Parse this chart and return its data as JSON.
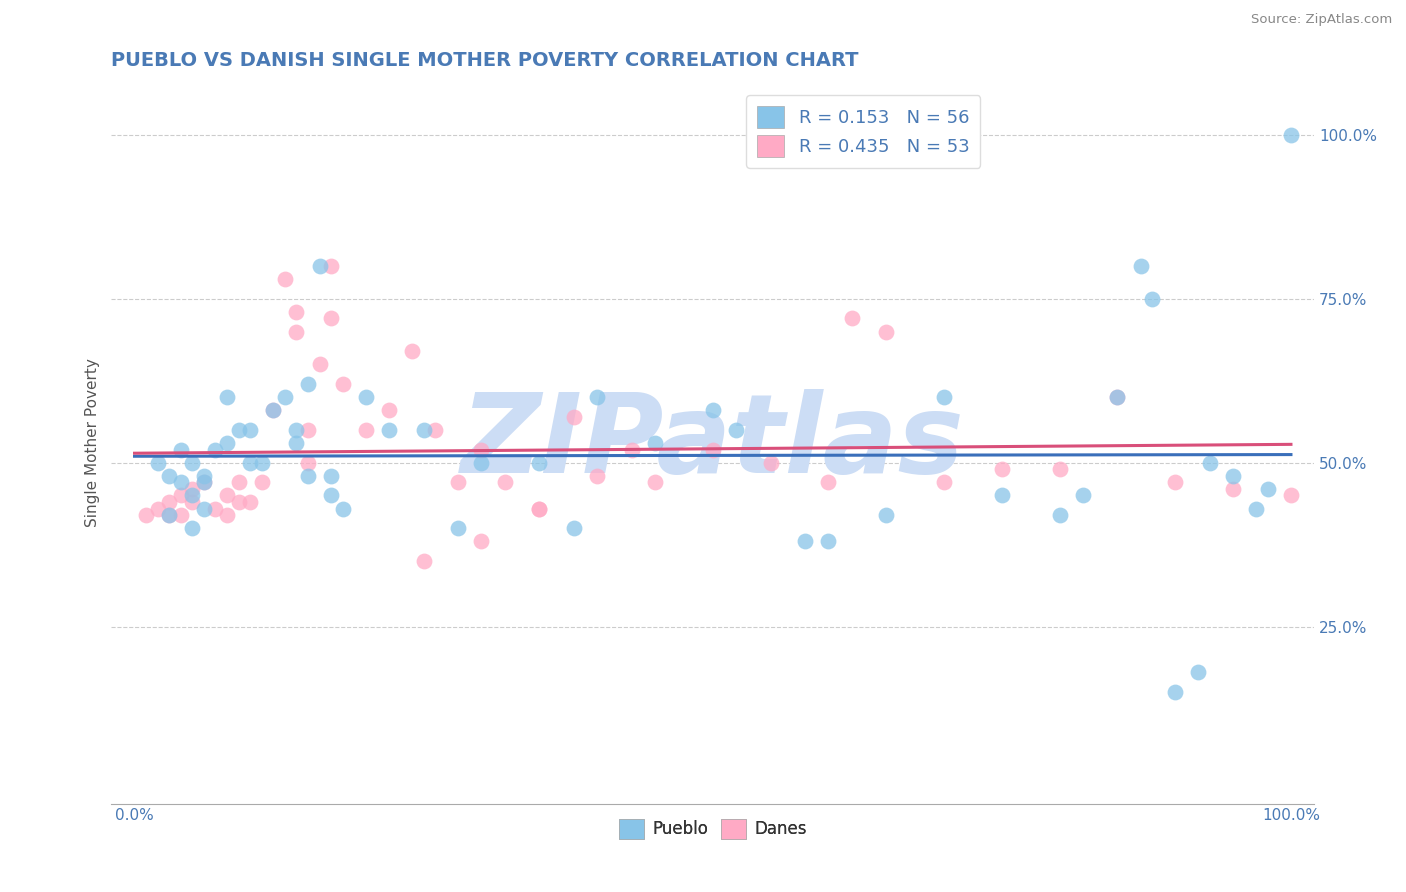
{
  "title": "PUEBLO VS DANISH SINGLE MOTHER POVERTY CORRELATION CHART",
  "source": "Source: ZipAtlas.com",
  "ylabel": "Single Mother Poverty",
  "xlim": [
    -0.02,
    1.02
  ],
  "ylim": [
    -0.02,
    1.08
  ],
  "xticks": [
    0.0,
    1.0
  ],
  "xtick_labels": [
    "0.0%",
    "100.0%"
  ],
  "yticks": [
    0.25,
    0.5,
    0.75,
    1.0
  ],
  "ytick_labels": [
    "25.0%",
    "50.0%",
    "75.0%",
    "100.0%"
  ],
  "pueblo_color": "#88c4e8",
  "danes_color": "#ffaac5",
  "pueblo_line_color": "#3a6fba",
  "danes_line_color": "#d94f7a",
  "R_pueblo": 0.153,
  "N_pueblo": 56,
  "R_danes": 0.435,
  "N_danes": 53,
  "title_color": "#4a7ab5",
  "stat_color": "#4a7ab5",
  "watermark": "ZIPatlas",
  "watermark_color": "#ccddf5",
  "pueblo_x": [
    0.02,
    0.03,
    0.04,
    0.04,
    0.05,
    0.05,
    0.06,
    0.06,
    0.07,
    0.08,
    0.08,
    0.09,
    0.1,
    0.11,
    0.12,
    0.13,
    0.14,
    0.14,
    0.15,
    0.16,
    0.17,
    0.17,
    0.18,
    0.2,
    0.22,
    0.25,
    0.28,
    0.3,
    0.35,
    0.38,
    0.4,
    0.45,
    0.5,
    0.52,
    0.58,
    0.6,
    0.65,
    0.7,
    0.75,
    0.8,
    0.82,
    0.85,
    0.87,
    0.88,
    0.9,
    0.92,
    0.93,
    0.95,
    0.97,
    0.98,
    1.0,
    0.03,
    0.05,
    0.06,
    0.1,
    0.15
  ],
  "pueblo_y": [
    0.5,
    0.48,
    0.52,
    0.47,
    0.5,
    0.45,
    0.48,
    0.47,
    0.52,
    0.53,
    0.6,
    0.55,
    0.55,
    0.5,
    0.58,
    0.6,
    0.55,
    0.53,
    0.62,
    0.8,
    0.48,
    0.45,
    0.43,
    0.6,
    0.55,
    0.55,
    0.4,
    0.5,
    0.5,
    0.4,
    0.6,
    0.53,
    0.58,
    0.55,
    0.38,
    0.38,
    0.42,
    0.6,
    0.45,
    0.42,
    0.45,
    0.6,
    0.8,
    0.75,
    0.15,
    0.18,
    0.5,
    0.48,
    0.43,
    0.46,
    1.0,
    0.42,
    0.4,
    0.43,
    0.5,
    0.48
  ],
  "danes_x": [
    0.01,
    0.02,
    0.03,
    0.03,
    0.04,
    0.04,
    0.05,
    0.05,
    0.06,
    0.07,
    0.08,
    0.08,
    0.09,
    0.09,
    0.1,
    0.11,
    0.12,
    0.13,
    0.14,
    0.14,
    0.15,
    0.15,
    0.16,
    0.18,
    0.2,
    0.22,
    0.24,
    0.26,
    0.28,
    0.3,
    0.32,
    0.35,
    0.38,
    0.4,
    0.43,
    0.45,
    0.5,
    0.55,
    0.6,
    0.62,
    0.65,
    0.7,
    0.75,
    0.8,
    0.85,
    0.9,
    0.95,
    1.0,
    0.17,
    0.17,
    0.25,
    0.3,
    0.35
  ],
  "danes_y": [
    0.42,
    0.43,
    0.42,
    0.44,
    0.45,
    0.42,
    0.46,
    0.44,
    0.47,
    0.43,
    0.42,
    0.45,
    0.44,
    0.47,
    0.44,
    0.47,
    0.58,
    0.78,
    0.73,
    0.7,
    0.55,
    0.5,
    0.65,
    0.62,
    0.55,
    0.58,
    0.67,
    0.55,
    0.47,
    0.52,
    0.47,
    0.43,
    0.57,
    0.48,
    0.52,
    0.47,
    0.52,
    0.5,
    0.47,
    0.72,
    0.7,
    0.47,
    0.49,
    0.49,
    0.6,
    0.47,
    0.46,
    0.45,
    0.8,
    0.72,
    0.35,
    0.38,
    0.43
  ],
  "background_color": "#ffffff",
  "grid_color": "#cccccc"
}
